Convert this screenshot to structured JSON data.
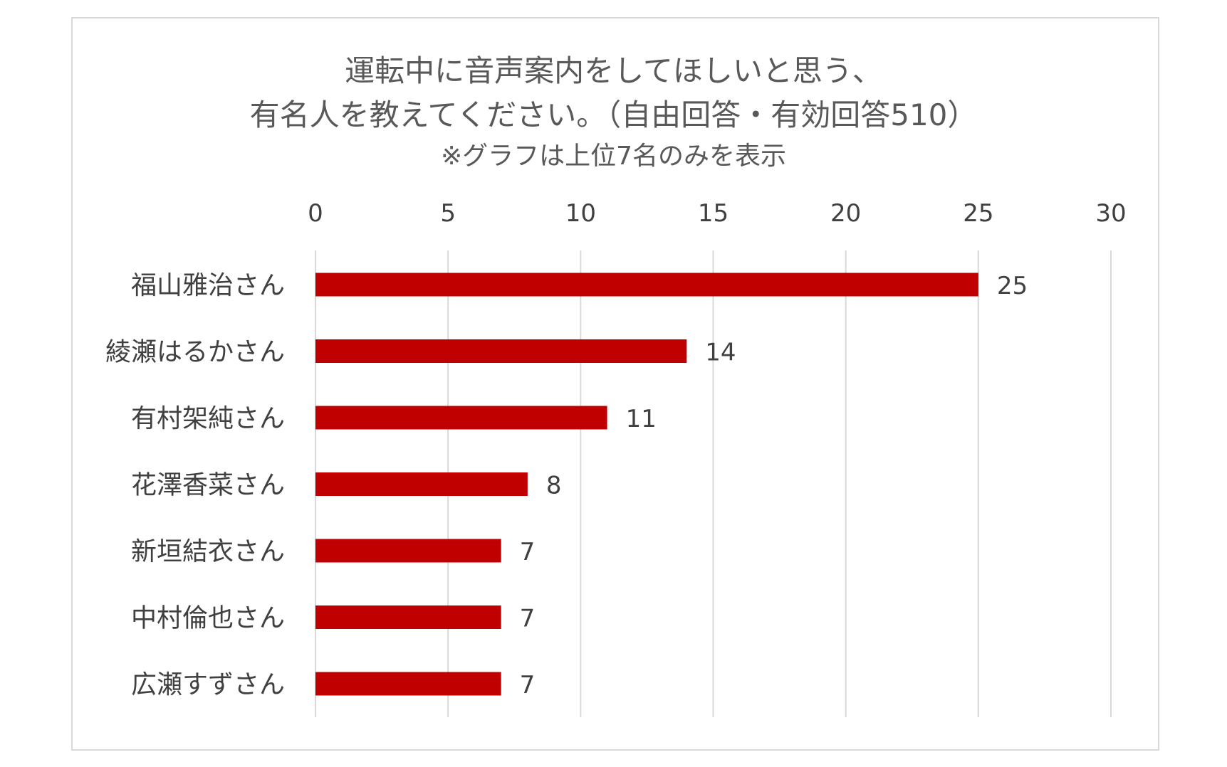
{
  "chart_data": {
    "type": "bar",
    "orientation": "horizontal",
    "title_lines": [
      "運転中に音声案内をしてほしいと思う、",
      "有名人を教えてください。（自由回答・有効回答510）",
      "※グラフは上位7名のみを表示"
    ],
    "categories": [
      "福山雅治さん",
      "綾瀬はるかさん",
      "有村架純さん",
      "花澤香菜さん",
      "新垣結衣さん",
      "中村倫也さん",
      "広瀬すずさん"
    ],
    "values": [
      25,
      14,
      11,
      8,
      7,
      7,
      7
    ],
    "xlim": [
      0,
      30
    ],
    "x_ticks": [
      0,
      5,
      10,
      15,
      20,
      25,
      30
    ],
    "x_axis_position": "top",
    "grid": true,
    "data_labels": true,
    "legend": "none",
    "bar_color": "#c00000",
    "grid_color": "#d9d9d9"
  }
}
